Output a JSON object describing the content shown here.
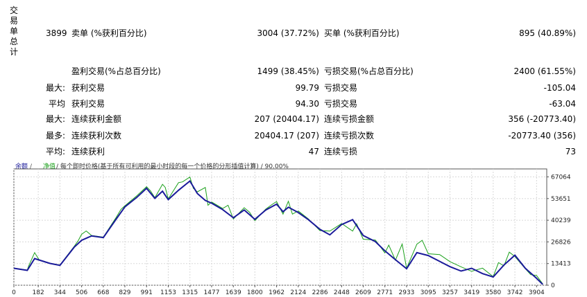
{
  "side_label": [
    "交",
    "易",
    "单",
    "总",
    "计"
  ],
  "summary": {
    "total": "3899",
    "sell_label": "卖单 (%获利百分比)",
    "sell_value": "3004 (37.72%)",
    "buy_label": "买单 (%获利百分比)",
    "buy_value": "895 (40.89%)"
  },
  "stats": [
    {
      "prefix": "",
      "l1": "盈利交易(%占总百分比)",
      "v1": "1499 (38.45%)",
      "l2": "亏损交易(%占总百分比)",
      "v2": "2400 (61.55%)"
    },
    {
      "prefix": "最大:",
      "l1": "获利交易",
      "v1": "99.79",
      "l2": "亏损交易",
      "v2": "-105.04"
    },
    {
      "prefix": "平均",
      "l1": "获利交易",
      "v1": "94.30",
      "l2": "亏损交易",
      "v2": "-63.04"
    },
    {
      "prefix": "最大:",
      "l1": "连续获利金额",
      "v1": "207 (20404.17)",
      "l2": "连续亏损金额",
      "v2": "356 (-20773.40)"
    },
    {
      "prefix": "最多:",
      "l1": "连续获利次数",
      "v1": "20404.17 (207)",
      "l2": "连续亏损次数",
      "v2": "-20773.40 (356)"
    },
    {
      "prefix": "平均:",
      "l1": "连续获利",
      "v1": "47",
      "l2": "连续亏损",
      "v2": "73"
    }
  ],
  "chart_caption": {
    "balance": "余额",
    "sep1": " / ",
    "equity": "净值",
    "rest": " / 每个即时价格(基于所有可利用的最小时段的每一个价格的分形插值计算) / 90.00%"
  },
  "colors": {
    "balance": "#1a1a9a",
    "equity": "#1aa01a",
    "grid": "#d8d8d8",
    "axis": "#555555"
  },
  "chart_data": {
    "type": "line",
    "xlabel": "",
    "ylabel": "",
    "x_ticks": [
      "0",
      "182",
      "344",
      "506",
      "668",
      "829",
      "991",
      "1153",
      "1315",
      "1477",
      "1639",
      "1800",
      "1962",
      "2124",
      "2286",
      "2448",
      "2609",
      "2771",
      "2933",
      "3095",
      "3257",
      "3419",
      "3580",
      "3742",
      "3904"
    ],
    "y_ticks": [
      "67064",
      "53651",
      "40239",
      "26826",
      "13413",
      "0"
    ],
    "xlim": [
      0,
      3980
    ],
    "ylim": [
      0,
      72000
    ],
    "series": [
      {
        "name": "余额",
        "x": [
          0,
          100,
          155,
          220,
          270,
          344,
          450,
          506,
          580,
          668,
          760,
          829,
          920,
          991,
          1053,
          1110,
          1153,
          1230,
          1315,
          1370,
          1430,
          1477,
          1560,
          1639,
          1720,
          1800,
          1880,
          1962,
          2010,
          2050,
          2124,
          2200,
          2286,
          2360,
          2448,
          2530,
          2609,
          2700,
          2771,
          2850,
          2933,
          3010,
          3095,
          3180,
          3257,
          3340,
          3419,
          3500,
          3580,
          3660,
          3742,
          3820,
          3904,
          3950
        ],
        "y": [
          10500,
          9200,
          16500,
          14800,
          13500,
          12300,
          23500,
          27800,
          30500,
          29500,
          40500,
          48500,
          54500,
          60000,
          53800,
          58200,
          53000,
          58800,
          64500,
          56800,
          52500,
          50800,
          46800,
          41800,
          46600,
          40800,
          46500,
          50200,
          45500,
          48300,
          45000,
          40600,
          34600,
          31200,
          37600,
          40600,
          30800,
          27000,
          21300,
          15800,
          10200,
          20200,
          18400,
          14800,
          11500,
          8800,
          10500,
          7200,
          5100,
          12500,
          18600,
          10500,
          4300,
          500
        ]
      },
      {
        "name": "净值",
        "x": [
          0,
          100,
          110,
          155,
          190,
          220,
          270,
          344,
          450,
          480,
          506,
          540,
          580,
          668,
          760,
          800,
          829,
          920,
          991,
          1020,
          1053,
          1110,
          1130,
          1153,
          1230,
          1260,
          1315,
          1340,
          1370,
          1430,
          1450,
          1477,
          1560,
          1600,
          1639,
          1720,
          1760,
          1800,
          1880,
          1920,
          1962,
          2010,
          2050,
          2080,
          2124,
          2200,
          2286,
          2360,
          2448,
          2530,
          2560,
          2609,
          2700,
          2771,
          2800,
          2850,
          2900,
          2933,
          3010,
          3050,
          3095,
          3180,
          3257,
          3340,
          3419,
          3500,
          3580,
          3620,
          3660,
          3700,
          3742,
          3820,
          3860,
          3904,
          3950
        ],
        "y": [
          10600,
          9400,
          11800,
          20200,
          15500,
          15000,
          13600,
          12500,
          24000,
          27500,
          31500,
          33600,
          30800,
          29800,
          41500,
          47000,
          49200,
          55500,
          61000,
          58500,
          54200,
          62500,
          60600,
          53400,
          63500,
          64000,
          67000,
          60000,
          57800,
          60500,
          49500,
          51500,
          47500,
          49500,
          41000,
          48000,
          45200,
          40000,
          47000,
          49500,
          51800,
          44000,
          52000,
          44000,
          46000,
          41000,
          33800,
          33500,
          38200,
          33500,
          38000,
          28500,
          28000,
          20000,
          24800,
          15500,
          25500,
          10500,
          25400,
          27800,
          19500,
          19000,
          14600,
          11400,
          8600,
          10600,
          5300,
          14000,
          12000,
          20500,
          17800,
          10200,
          6600,
          6000,
          800
        ]
      }
    ]
  }
}
